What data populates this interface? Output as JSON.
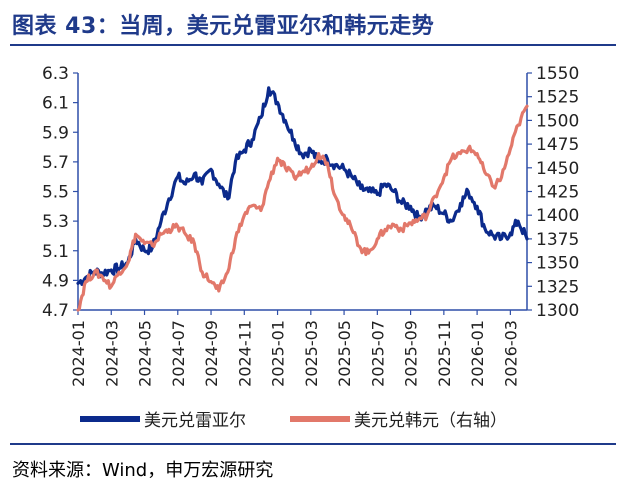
{
  "title": "图表 43：当周，美元兑雷亚尔和韩元走势",
  "source": "资料来源：Wind，申万宏源研究",
  "chart_data": {
    "type": "line",
    "x_ticks": [
      "2024-01",
      "2024-03",
      "2024-05",
      "2024-07",
      "2024-09",
      "2024-11",
      "2025-01",
      "2025-03",
      "2025-05",
      "2025-07",
      "2025-09",
      "2025-11",
      "2026-01",
      "2026-03"
    ],
    "y_left": {
      "min": 4.7,
      "max": 6.3,
      "ticks": [
        "6.3",
        "6.1",
        "5.9",
        "5.7",
        "5.5",
        "5.3",
        "5.1",
        "4.9",
        "4.7"
      ]
    },
    "y_right": {
      "min": 1300,
      "max": 1550,
      "ticks": [
        "1550",
        "1525",
        "1500",
        "1475",
        "1450",
        "1425",
        "1400",
        "1375",
        "1350",
        "1325",
        "1300"
      ]
    },
    "series": [
      {
        "name": "美元兑雷亚尔",
        "axis": "left",
        "color": "#0b2a8c",
        "x": [
          "2024-01-01",
          "2024-01-15",
          "2024-02-01",
          "2024-02-15",
          "2024-03-01",
          "2024-03-15",
          "2024-04-01",
          "2024-04-15",
          "2024-05-01",
          "2024-05-15",
          "2024-06-01",
          "2024-06-15",
          "2024-07-01",
          "2024-07-15",
          "2024-08-01",
          "2024-08-15",
          "2024-09-01",
          "2024-09-15",
          "2024-10-01",
          "2024-10-15",
          "2024-11-01",
          "2024-11-15",
          "2024-12-01",
          "2024-12-15",
          "2025-01-01",
          "2025-01-15",
          "2025-02-01",
          "2025-02-15",
          "2025-03-01",
          "2025-03-15",
          "2025-04-01",
          "2025-04-15",
          "2025-05-01",
          "2025-05-15",
          "2025-06-01",
          "2025-06-15",
          "2025-07-01",
          "2025-07-15",
          "2025-08-01",
          "2025-08-15",
          "2025-09-01",
          "2025-09-15",
          "2025-10-01",
          "2025-10-15",
          "2025-11-01",
          "2025-11-15",
          "2025-12-01",
          "2025-12-15",
          "2026-01-01",
          "2026-01-15",
          "2026-02-01",
          "2026-02-15",
          "2026-03-01",
          "2026-03-15",
          "2026-04-01"
        ],
        "values": [
          4.88,
          4.92,
          4.96,
          4.95,
          4.97,
          4.98,
          5.02,
          5.18,
          5.1,
          5.12,
          5.3,
          5.45,
          5.6,
          5.55,
          5.62,
          5.55,
          5.65,
          5.55,
          5.45,
          5.7,
          5.78,
          5.85,
          6.0,
          6.2,
          6.1,
          5.98,
          5.85,
          5.75,
          5.78,
          5.7,
          5.72,
          5.68,
          5.65,
          5.6,
          5.52,
          5.5,
          5.48,
          5.55,
          5.5,
          5.42,
          5.4,
          5.32,
          5.38,
          5.4,
          5.35,
          5.3,
          5.42,
          5.5,
          5.4,
          5.25,
          5.2,
          5.18,
          5.22,
          5.3,
          5.18
        ]
      },
      {
        "name": "美元兑韩元（右轴）",
        "axis": "right",
        "color": "#e2786a",
        "x": [
          "2024-01-01",
          "2024-01-15",
          "2024-02-01",
          "2024-02-15",
          "2024-03-01",
          "2024-03-15",
          "2024-04-01",
          "2024-04-15",
          "2024-05-01",
          "2024-05-15",
          "2024-06-01",
          "2024-06-15",
          "2024-07-01",
          "2024-07-15",
          "2024-08-01",
          "2024-08-15",
          "2024-09-01",
          "2024-09-15",
          "2024-10-01",
          "2024-10-15",
          "2024-11-01",
          "2024-11-15",
          "2024-12-01",
          "2024-12-15",
          "2025-01-01",
          "2025-01-15",
          "2025-02-01",
          "2025-02-15",
          "2025-03-01",
          "2025-03-15",
          "2025-04-01",
          "2025-04-15",
          "2025-05-01",
          "2025-05-15",
          "2025-06-01",
          "2025-06-15",
          "2025-07-01",
          "2025-07-15",
          "2025-08-01",
          "2025-08-15",
          "2025-09-01",
          "2025-09-15",
          "2025-10-01",
          "2025-10-15",
          "2025-11-01",
          "2025-11-15",
          "2025-12-01",
          "2025-12-15",
          "2026-01-01",
          "2026-01-15",
          "2026-02-01",
          "2026-02-15",
          "2026-03-01",
          "2026-03-15",
          "2026-04-01"
        ],
        "values": [
          1300,
          1330,
          1340,
          1335,
          1325,
          1340,
          1350,
          1380,
          1370,
          1368,
          1380,
          1385,
          1388,
          1380,
          1370,
          1340,
          1330,
          1320,
          1340,
          1375,
          1400,
          1410,
          1405,
          1435,
          1460,
          1450,
          1440,
          1445,
          1450,
          1465,
          1455,
          1420,
          1400,
          1385,
          1365,
          1360,
          1375,
          1385,
          1390,
          1385,
          1392,
          1395,
          1400,
          1420,
          1440,
          1460,
          1465,
          1470,
          1465,
          1445,
          1430,
          1440,
          1470,
          1495,
          1515
        ]
      }
    ]
  }
}
